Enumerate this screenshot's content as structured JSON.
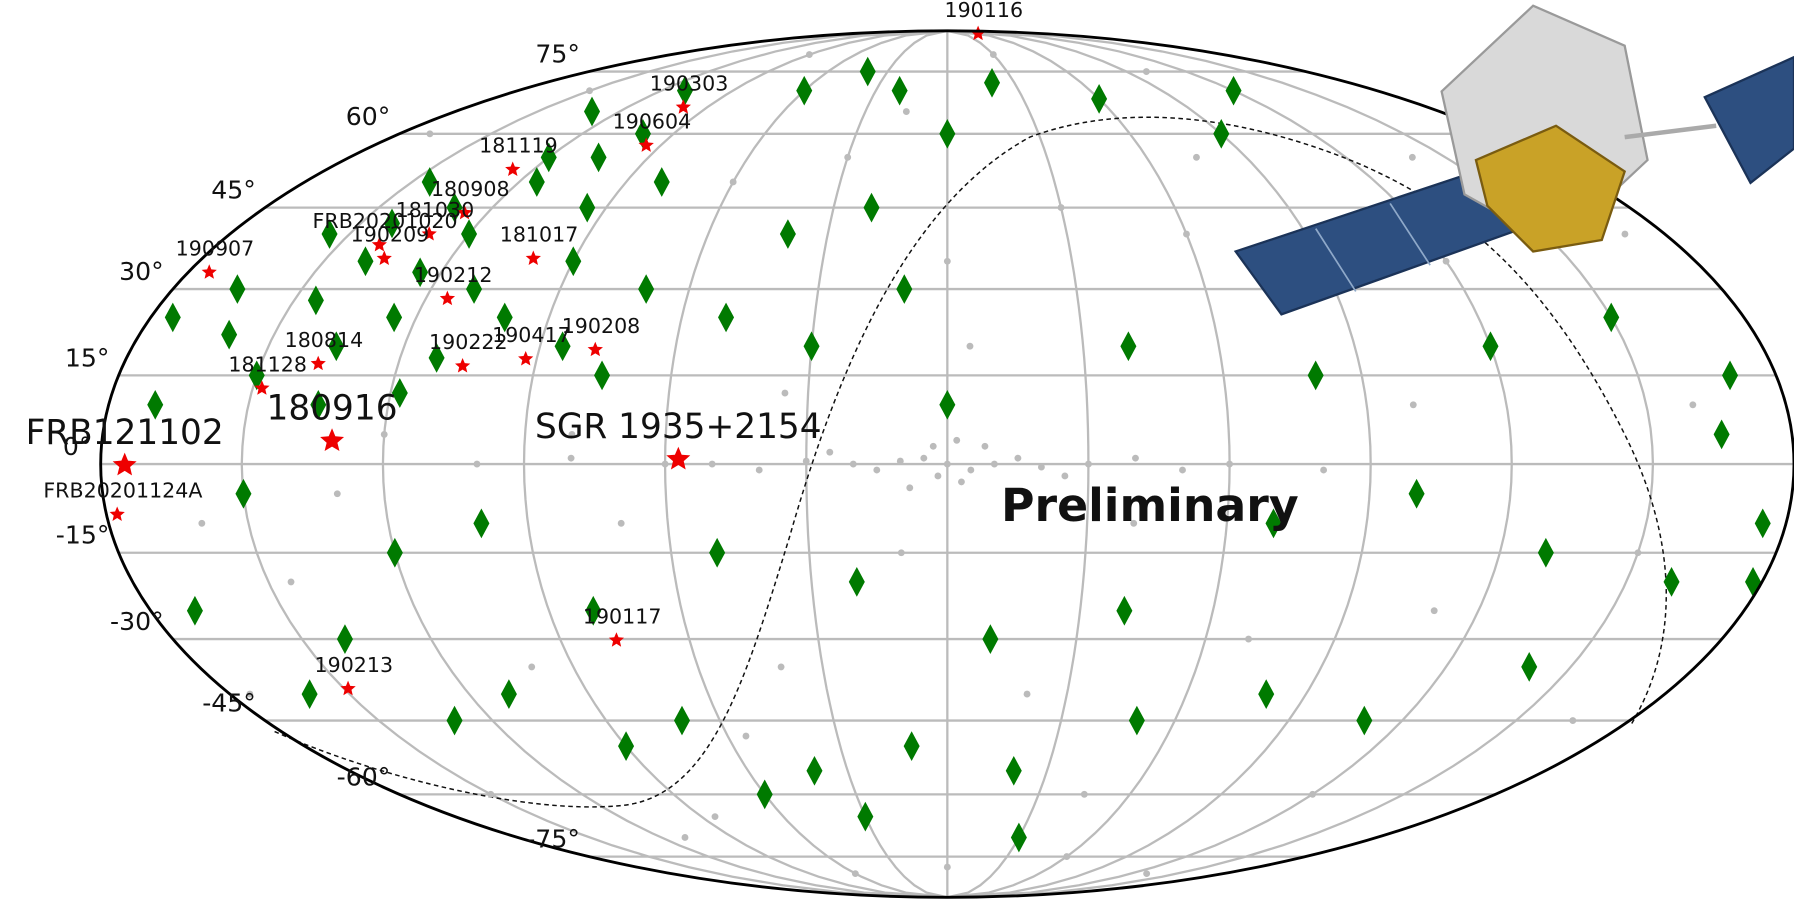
{
  "chart_data": {
    "type": "scatter",
    "projection": "mollweide",
    "xlim": [
      180,
      -180
    ],
    "ylim": [
      -90,
      90
    ],
    "yticks": [
      {
        "value": 75,
        "label": "75°"
      },
      {
        "value": 60,
        "label": "60°"
      },
      {
        "value": 45,
        "label": "45°"
      },
      {
        "value": 30,
        "label": "30°"
      },
      {
        "value": 15,
        "label": "15°"
      },
      {
        "value": 0,
        "label": "0°"
      },
      {
        "value": -15,
        "label": "-15°"
      },
      {
        "value": -30,
        "label": "-30°"
      },
      {
        "value": -45,
        "label": "-45°"
      },
      {
        "value": -60,
        "label": "-60°"
      },
      {
        "value": -75,
        "label": "-75°"
      }
    ],
    "meridians": [
      150,
      120,
      90,
      60,
      30,
      0,
      -30,
      -60,
      -90,
      -120,
      -150
    ],
    "grid": true,
    "grid_color": "#bbbbbb",
    "annotation": "Preliminary",
    "series": [
      {
        "marker": "circle",
        "color": "#bbbbbb",
        "x": [
          0,
          5,
          -5,
          10,
          -10,
          15,
          -15,
          20,
          -20,
          30,
          -30,
          40,
          -40,
          50,
          -50,
          60,
          -60,
          80,
          -80,
          100,
          3,
          -3,
          2,
          -2,
          8,
          -8,
          25,
          -25,
          170,
          150,
          90,
          -30,
          -100,
          -140,
          -170,
          -160,
          -120,
          -90,
          -60,
          -30,
          0,
          30,
          60,
          80,
          120,
          160,
          175,
          150,
          110,
          60,
          0,
          -60,
          -120,
          -165,
          -150,
          -110,
          -70,
          -40,
          -20,
          10,
          40,
          70,
          100,
          130,
          -5,
          -45,
          85,
          -130,
          35,
          -75,
          145,
          -100,
          55,
          15
        ],
        "y": [
          0,
          1,
          -1,
          0.5,
          0,
          -1,
          1,
          0,
          -0.5,
          0.5,
          0,
          -1,
          1,
          0,
          -1,
          0,
          0,
          1,
          -1,
          0,
          3,
          -3,
          -2,
          4,
          -4,
          3,
          2,
          -2,
          60,
          70,
          80,
          80,
          75,
          55,
          40,
          10,
          35,
          30,
          40,
          45,
          35,
          55,
          50,
          5,
          5,
          -10,
          -40,
          -60,
          -70,
          -80,
          -78,
          -75,
          -60,
          -45,
          -15,
          -25,
          -30,
          -10,
          -40,
          -15,
          -35,
          -10,
          -35,
          -5,
          20,
          -60,
          -65,
          -80,
          12,
          55,
          -20,
          10,
          -48,
          65
        ]
      },
      {
        "marker": "diamond",
        "color": "#007a00",
        "x": [
          120,
          130,
          140,
          110,
          125,
          135,
          145,
          150,
          160,
          170,
          165,
          155,
          115,
          105,
          100,
          95,
          90,
          100,
          85,
          75,
          70,
          80,
          110,
          130,
          60,
          40,
          20,
          0,
          -20,
          -60,
          -90,
          -120,
          40,
          20,
          10,
          30,
          50,
          0,
          -40,
          -80,
          -120,
          -150,
          -170,
          -175,
          -160,
          -130,
          -100,
          -70,
          -40,
          -10,
          20,
          50,
          80,
          100,
          120,
          140,
          160,
          150,
          130,
          110,
          90,
          70,
          40,
          10,
          -20,
          -50,
          -80,
          -110,
          -140,
          30,
          -30,
          60,
          175,
          170,
          -165,
          -178,
          -150,
          145,
          120,
          135,
          118,
          112,
          125,
          142
        ],
        "y": [
          40,
          45,
          35,
          30,
          25,
          20,
          28,
          15,
          22,
          10,
          30,
          40,
          50,
          55,
          60,
          45,
          35,
          25,
          20,
          15,
          30,
          50,
          70,
          65,
          70,
          75,
          70,
          60,
          72,
          68,
          60,
          70,
          40,
          45,
          30,
          20,
          25,
          10,
          20,
          15,
          20,
          25,
          15,
          -10,
          -20,
          -15,
          -5,
          -10,
          -25,
          -30,
          -20,
          -15,
          -25,
          -10,
          -15,
          -30,
          -40,
          -5,
          -45,
          -40,
          -50,
          -45,
          -55,
          -50,
          -55,
          -45,
          -40,
          -45,
          -35,
          -65,
          -70,
          -60,
          25,
          -25,
          5,
          -20,
          40,
          50,
          55,
          10,
          12,
          18,
          33,
          42
        ]
      },
      {
        "marker": "star",
        "color": "#ee0000",
        "label_size": "small",
        "labels": [
          "190116",
          "190303",
          "190604",
          "181119",
          "180908",
          "181030",
          "FRB20201020",
          "181017",
          "190907",
          "190209",
          "190212",
          "180814",
          "181128",
          "190222",
          "190417",
          "190208",
          "FRB20201124A",
          "190117",
          "190213"
        ],
        "x": [
          -58,
          99,
          94.5,
          126,
          126,
          130,
          140,
          100,
          175,
          136,
          115,
          137.5,
          148,
          105.8,
          92.4,
          77.6,
          177.7,
          77,
          149
        ],
        "y": [
          88,
          66,
          57.5,
          52.5,
          44,
          40,
          38,
          35.5,
          33,
          35.5,
          28.3,
          17,
          12.8,
          16.6,
          17.8,
          19.4,
          -8.5,
          -30.2,
          -39
        ]
      },
      {
        "marker": "star",
        "color": "#ee0000",
        "label_size": "large",
        "labels": [
          "FRB121102",
          "180916",
          "SGR 1935+2154"
        ],
        "x": [
          174.9,
          131,
          57.2
        ],
        "y": [
          -0.2,
          3.9,
          0.8
        ]
      }
    ]
  }
}
